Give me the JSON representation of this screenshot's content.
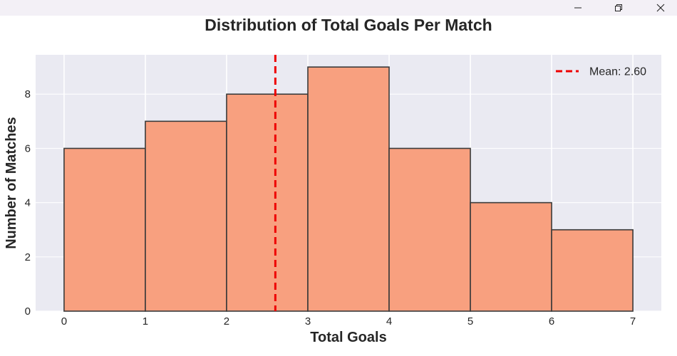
{
  "window": {
    "controls": {
      "minimize_icon": "minimize-icon",
      "maximize_icon": "restore-icon",
      "close_icon": "close-icon"
    }
  },
  "chart_data": {
    "type": "bar",
    "title": "Distribution of Total Goals Per Match",
    "xlabel": "Total Goals",
    "ylabel": "Number of Matches",
    "bins": [
      {
        "start": 0,
        "end": 1,
        "value": 6
      },
      {
        "start": 1,
        "end": 2,
        "value": 7
      },
      {
        "start": 2,
        "end": 3,
        "value": 8
      },
      {
        "start": 3,
        "end": 4,
        "value": 9
      },
      {
        "start": 4,
        "end": 5,
        "value": 6
      },
      {
        "start": 5,
        "end": 6,
        "value": 4
      },
      {
        "start": 6,
        "end": 7,
        "value": 3
      }
    ],
    "xticks": [
      0,
      1,
      2,
      3,
      4,
      5,
      6,
      7
    ],
    "yticks": [
      0,
      2,
      4,
      6,
      8
    ],
    "xlim": [
      -0.35,
      7.35
    ],
    "ylim": [
      0,
      9.45
    ],
    "mean_line": {
      "value": 2.6,
      "label": "Mean: 2.60",
      "color": "#ee0000"
    },
    "bar_color": "#f8a07f",
    "bar_edge_color": "#3a3a3a",
    "plot_background": "#eaeaf2",
    "grid": true,
    "legend_position": "top-right"
  }
}
